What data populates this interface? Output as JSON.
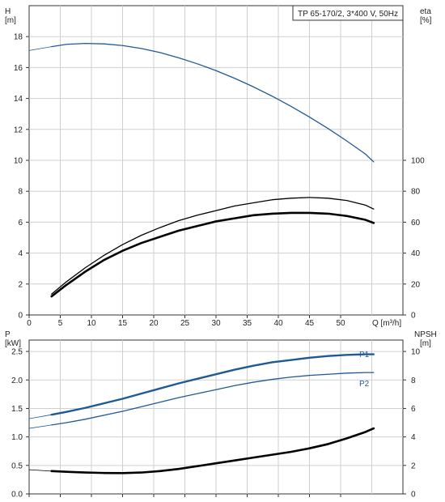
{
  "chart_data": [
    {
      "type": "line",
      "title": "TP 65-170/2, 3*400 V, 50Hz",
      "xlabel": "Q [m³/h]",
      "ylabel_left": [
        "H",
        "[m]"
      ],
      "ylabel_right": [
        "eta",
        "[%]"
      ],
      "xlim": [
        0,
        60
      ],
      "ylim": [
        0,
        20
      ],
      "ylim_right": [
        0,
        200
      ],
      "x_ticks": [
        "0",
        "5",
        "10",
        "15",
        "20",
        "25",
        "30",
        "35",
        "40",
        "45",
        "50"
      ],
      "y_ticks": [
        "0",
        "2",
        "4",
        "6",
        "8",
        "10",
        "12",
        "14",
        "16",
        "18"
      ],
      "y_right_ticks": [
        "0",
        "20",
        "40",
        "60",
        "80",
        "100"
      ],
      "grid": true,
      "series": [
        {
          "axis": "left",
          "color": "#1f5a96",
          "role": "H head curve",
          "x": [
            0,
            3.6,
            6,
            9,
            12,
            15,
            18,
            21,
            24,
            27,
            30,
            33,
            36,
            39,
            42,
            45,
            48,
            51,
            54,
            55.3
          ],
          "y": [
            17.1,
            17.35,
            17.5,
            17.56,
            17.53,
            17.42,
            17.23,
            16.97,
            16.63,
            16.24,
            15.8,
            15.3,
            14.75,
            14.15,
            13.5,
            12.8,
            12.05,
            11.25,
            10.4,
            9.9
          ],
          "thin_to_x": 3.6
        },
        {
          "axis": "right",
          "color": "#000000",
          "role": "eta hydraulic efficiency",
          "x": [
            3.6,
            6,
            9,
            12,
            15,
            18,
            21,
            24,
            27,
            30,
            33,
            36,
            39,
            42,
            45,
            48,
            51,
            54,
            55.3
          ],
          "y": [
            13.5,
            21.5,
            30.5,
            38.5,
            45.5,
            51.5,
            56.5,
            61,
            64.5,
            67.5,
            70.5,
            72.5,
            74.5,
            75.5,
            76,
            75.5,
            74,
            71,
            68.5
          ]
        },
        {
          "axis": "right",
          "color": "#000000",
          "role": "eta total efficiency",
          "x": [
            3.6,
            6,
            9,
            12,
            15,
            18,
            21,
            24,
            27,
            30,
            33,
            36,
            39,
            42,
            45,
            48,
            51,
            54,
            55.3
          ],
          "y": [
            12,
            19.5,
            28,
            35.5,
            41.5,
            46.5,
            50.5,
            54.5,
            57.5,
            60.5,
            62.5,
            64.5,
            65.5,
            66,
            66,
            65.5,
            64,
            61.5,
            59.5
          ],
          "bold": true
        }
      ]
    },
    {
      "type": "line",
      "xlim": [
        0,
        60
      ],
      "ylim": [
        0,
        2.7
      ],
      "ylim_right": [
        0,
        10.8
      ],
      "ylabel_left": [
        "P",
        "[kW]"
      ],
      "ylabel_right": [
        "NPSH",
        "[m]"
      ],
      "y_ticks": [
        "0.0",
        "0.5",
        "1.0",
        "1.5",
        "2.0",
        "2.5"
      ],
      "y_right_ticks": [
        "0",
        "2",
        "4",
        "6",
        "8",
        "10"
      ],
      "grid": true,
      "series": [
        {
          "axis": "left",
          "name": "P1",
          "color": "#1f5a96",
          "x": [
            0,
            3.6,
            6,
            9,
            12,
            15,
            18,
            21,
            24,
            27,
            30,
            33,
            36,
            39,
            42,
            45,
            48,
            51,
            54,
            55.3
          ],
          "y": [
            1.32,
            1.39,
            1.44,
            1.51,
            1.59,
            1.67,
            1.76,
            1.85,
            1.94,
            2.02,
            2.1,
            2.18,
            2.25,
            2.31,
            2.35,
            2.39,
            2.42,
            2.44,
            2.45,
            2.45
          ],
          "thin_to_x": 3.6,
          "bold": true
        },
        {
          "axis": "left",
          "name": "P2",
          "color": "#1f5a96",
          "x": [
            0,
            3.6,
            6,
            9,
            12,
            15,
            18,
            21,
            24,
            27,
            30,
            33,
            36,
            39,
            42,
            45,
            48,
            51,
            54,
            55.3
          ],
          "y": [
            1.15,
            1.21,
            1.25,
            1.31,
            1.38,
            1.45,
            1.53,
            1.61,
            1.69,
            1.76,
            1.83,
            1.9,
            1.96,
            2.01,
            2.05,
            2.08,
            2.1,
            2.12,
            2.13,
            2.13
          ],
          "thin_to_x": 3.6
        },
        {
          "axis": "right",
          "color": "#000000",
          "role": "NPSH",
          "x": [
            0,
            3.6,
            6,
            9,
            12,
            15,
            18,
            21,
            24,
            27,
            30,
            33,
            36,
            39,
            42,
            45,
            48,
            51,
            54,
            55.3
          ],
          "y": [
            1.7,
            1.6,
            1.55,
            1.5,
            1.47,
            1.46,
            1.5,
            1.6,
            1.75,
            1.95,
            2.15,
            2.35,
            2.55,
            2.75,
            2.95,
            3.2,
            3.5,
            3.9,
            4.35,
            4.6
          ],
          "thin_to_x": 3.6,
          "bold": true
        }
      ]
    }
  ]
}
